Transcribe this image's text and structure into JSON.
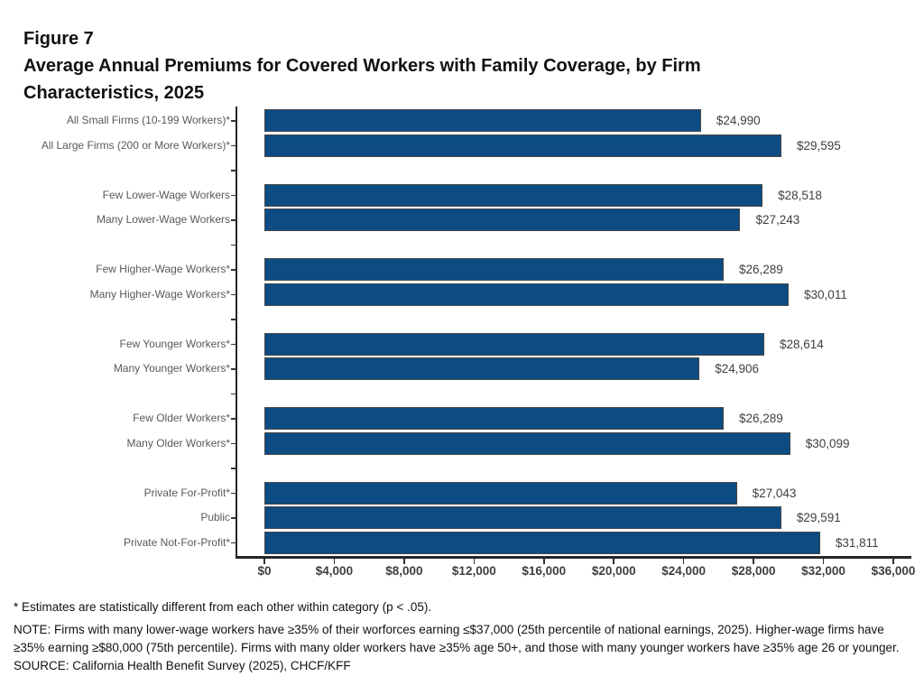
{
  "header": {
    "figure_label": "Figure 7",
    "title_lines": [
      "Average Annual Premiums for Covered Workers with Family Coverage, by Firm",
      "Characteristics, 2025"
    ]
  },
  "chart_data": {
    "type": "bar",
    "orientation": "horizontal",
    "title": "Average Annual Premiums for Covered Workers with Family Coverage, by Firm Characteristics, 2025",
    "categories": [
      "All Small Firms (10-199 Workers)*",
      "All Large Firms (200 or More Workers)*",
      "Few Lower-Wage Workers",
      "Many Lower-Wage Workers",
      "Few Higher-Wage Workers*",
      "Many Higher-Wage Workers*",
      "Few Younger Workers*",
      "Many Younger Workers*",
      "Few Older Workers*",
      "Many Older Workers*",
      "Private For-Profit*",
      "Public",
      "Private Not-For-Profit*"
    ],
    "values": [
      24990,
      29595,
      28518,
      27243,
      26289,
      30011,
      28614,
      24906,
      26289,
      30099,
      27043,
      29591,
      31811
    ],
    "value_labels": [
      "$24,990",
      "$29,595",
      "$28,518",
      "$27,243",
      "$26,289",
      "$30,011",
      "$28,614",
      "$24,906",
      "$26,289",
      "$30,099",
      "$27,043",
      "$29,591",
      "$31,811"
    ],
    "groups": [
      [
        0,
        1
      ],
      [
        2,
        3
      ],
      [
        4,
        5
      ],
      [
        6,
        7
      ],
      [
        8,
        9
      ],
      [
        10,
        11,
        12
      ]
    ],
    "x_tick_labels": [
      "$0",
      "$4,000",
      "$8,000",
      "$12,000",
      "$16,000",
      "$20,000",
      "$24,000",
      "$28,000",
      "$32,000",
      "$36,000"
    ],
    "x_tick_values": [
      0,
      4000,
      8000,
      12000,
      16000,
      20000,
      24000,
      28000,
      32000,
      36000
    ],
    "xlim": [
      0,
      36000
    ],
    "xlabel": "",
    "ylabel": "",
    "grid": false,
    "legend": false,
    "bar_color": "#0c4c83",
    "bar_border_color": "#474747",
    "axis_color": "#262626"
  },
  "footnotes": {
    "star": "* Estimates are statistically different from each other within category (p < .05).",
    "note": "NOTE: Firms with many lower-wage workers have ≥35% of their worforces earning ≤$37,000 (25th percentile of national earnings, 2025). Higher-wage firms have ≥35% earning ≥$80,000 (75th percentile). Firms with many older workers have ≥35% age 50+, and those with many younger workers have ≥35% age 26 or younger.",
    "source": "SOURCE: California Health Benefit Survey (2025), CHCF/KFF"
  }
}
